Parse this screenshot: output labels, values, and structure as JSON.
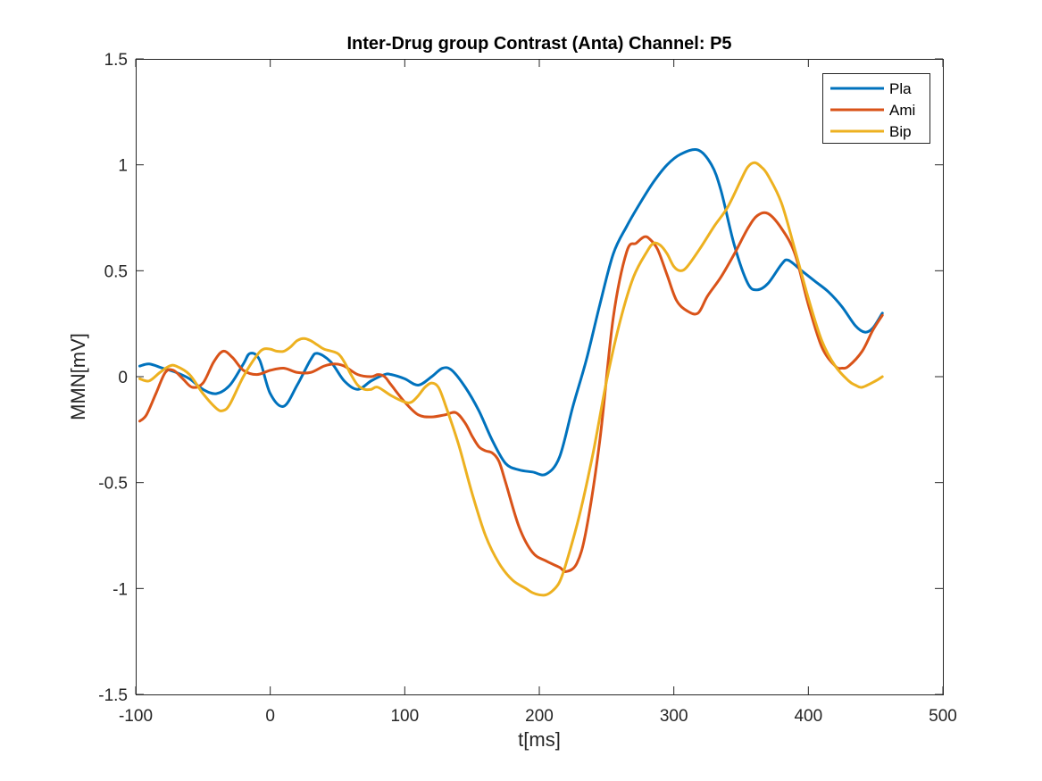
{
  "chart_data": {
    "type": "line",
    "title": "Inter-Drug group Contrast (Anta) Channel: P5",
    "xlabel": "t[ms]",
    "ylabel": "MMN[mV]",
    "xlim": [
      -100,
      500
    ],
    "ylim": [
      -1.5,
      1.5
    ],
    "xticks": [
      -100,
      0,
      100,
      200,
      300,
      400,
      500
    ],
    "yticks": [
      -1.5,
      -1,
      -0.5,
      0,
      0.5,
      1,
      1.5
    ],
    "xtick_labels": [
      "-100",
      "0",
      "100",
      "200",
      "300",
      "400",
      "500"
    ],
    "ytick_labels": [
      "-1.5",
      "-1",
      "-0.5",
      "0",
      "0.5",
      "1",
      "1.5"
    ],
    "grid": false,
    "legend_position": "top-right",
    "series": [
      {
        "name": "Pla",
        "color": "#0072BD",
        "x": [
          -97,
          -90,
          -80,
          -70,
          -60,
          -50,
          -40,
          -30,
          -20,
          -15,
          -8,
          0,
          10,
          20,
          30,
          35,
          45,
          55,
          65,
          75,
          85,
          90,
          100,
          110,
          120,
          128,
          135,
          145,
          155,
          165,
          175,
          185,
          195,
          205,
          215,
          225,
          235,
          245,
          255,
          265,
          275,
          285,
          295,
          305,
          318,
          328,
          335,
          345,
          355,
          362,
          370,
          380,
          385,
          395,
          405,
          415,
          425,
          435,
          442,
          448,
          455
        ],
        "values": [
          0.05,
          0.06,
          0.04,
          0.02,
          -0.01,
          -0.06,
          -0.08,
          -0.04,
          0.06,
          0.11,
          0.08,
          -0.08,
          -0.14,
          -0.04,
          0.08,
          0.11,
          0.07,
          -0.02,
          -0.06,
          -0.02,
          0.01,
          0.01,
          -0.01,
          -0.04,
          0.0,
          0.04,
          0.03,
          -0.05,
          -0.16,
          -0.3,
          -0.41,
          -0.44,
          -0.45,
          -0.46,
          -0.38,
          -0.14,
          0.08,
          0.34,
          0.58,
          0.71,
          0.82,
          0.92,
          1.0,
          1.05,
          1.07,
          1.0,
          0.88,
          0.62,
          0.44,
          0.41,
          0.44,
          0.53,
          0.55,
          0.5,
          0.45,
          0.4,
          0.33,
          0.24,
          0.21,
          0.23,
          0.3
        ]
      },
      {
        "name": "Ami",
        "color": "#D95319",
        "x": [
          -97,
          -92,
          -85,
          -78,
          -72,
          -65,
          -58,
          -50,
          -42,
          -35,
          -28,
          -20,
          -10,
          0,
          10,
          20,
          30,
          40,
          48,
          55,
          65,
          75,
          80,
          85,
          90,
          100,
          110,
          120,
          130,
          138,
          145,
          150,
          155,
          160,
          165,
          170,
          175,
          185,
          195,
          205,
          215,
          220,
          228,
          235,
          245,
          255,
          265,
          272,
          278,
          282,
          288,
          295,
          302,
          310,
          318,
          325,
          335,
          345,
          355,
          362,
          370,
          380,
          390,
          400,
          410,
          420,
          425,
          430,
          440,
          448,
          455
        ],
        "values": [
          -0.21,
          -0.18,
          -0.08,
          0.02,
          0.03,
          -0.01,
          -0.05,
          -0.03,
          0.07,
          0.12,
          0.09,
          0.03,
          0.01,
          0.03,
          0.04,
          0.02,
          0.02,
          0.05,
          0.06,
          0.05,
          0.01,
          0.0,
          0.01,
          0.0,
          -0.04,
          -0.12,
          -0.18,
          -0.19,
          -0.18,
          -0.17,
          -0.22,
          -0.28,
          -0.33,
          -0.35,
          -0.36,
          -0.4,
          -0.5,
          -0.71,
          -0.83,
          -0.87,
          -0.9,
          -0.92,
          -0.88,
          -0.72,
          -0.3,
          0.28,
          0.59,
          0.63,
          0.66,
          0.65,
          0.6,
          0.48,
          0.36,
          0.31,
          0.3,
          0.38,
          0.47,
          0.58,
          0.7,
          0.76,
          0.77,
          0.7,
          0.58,
          0.34,
          0.14,
          0.05,
          0.04,
          0.05,
          0.12,
          0.22,
          0.29
        ]
      },
      {
        "name": "Bip",
        "color": "#EDB120",
        "x": [
          -97,
          -90,
          -82,
          -75,
          -70,
          -60,
          -50,
          -40,
          -35,
          -30,
          -20,
          -10,
          -5,
          0,
          5,
          10,
          15,
          20,
          25,
          30,
          35,
          40,
          50,
          55,
          60,
          65,
          70,
          75,
          80,
          90,
          100,
          105,
          110,
          115,
          120,
          125,
          130,
          140,
          150,
          160,
          170,
          180,
          190,
          195,
          200,
          205,
          210,
          215,
          220,
          230,
          240,
          250,
          260,
          270,
          280,
          285,
          290,
          295,
          300,
          305,
          310,
          320,
          330,
          340,
          350,
          355,
          360,
          365,
          370,
          380,
          390,
          400,
          410,
          420,
          430,
          435,
          440,
          450,
          455
        ],
        "values": [
          -0.01,
          -0.02,
          0.02,
          0.05,
          0.05,
          0.01,
          -0.08,
          -0.15,
          -0.16,
          -0.13,
          0.0,
          0.1,
          0.13,
          0.13,
          0.12,
          0.12,
          0.14,
          0.17,
          0.18,
          0.17,
          0.15,
          0.13,
          0.11,
          0.07,
          0.01,
          -0.04,
          -0.06,
          -0.06,
          -0.05,
          -0.09,
          -0.12,
          -0.12,
          -0.09,
          -0.05,
          -0.03,
          -0.05,
          -0.13,
          -0.32,
          -0.55,
          -0.75,
          -0.88,
          -0.96,
          -1.0,
          -1.02,
          -1.03,
          -1.03,
          -1.01,
          -0.97,
          -0.88,
          -0.65,
          -0.36,
          -0.02,
          0.26,
          0.47,
          0.59,
          0.63,
          0.62,
          0.58,
          0.52,
          0.5,
          0.52,
          0.61,
          0.71,
          0.8,
          0.93,
          0.99,
          1.01,
          0.99,
          0.95,
          0.82,
          0.6,
          0.37,
          0.17,
          0.05,
          -0.02,
          -0.04,
          -0.05,
          -0.02,
          0.0
        ]
      }
    ]
  }
}
